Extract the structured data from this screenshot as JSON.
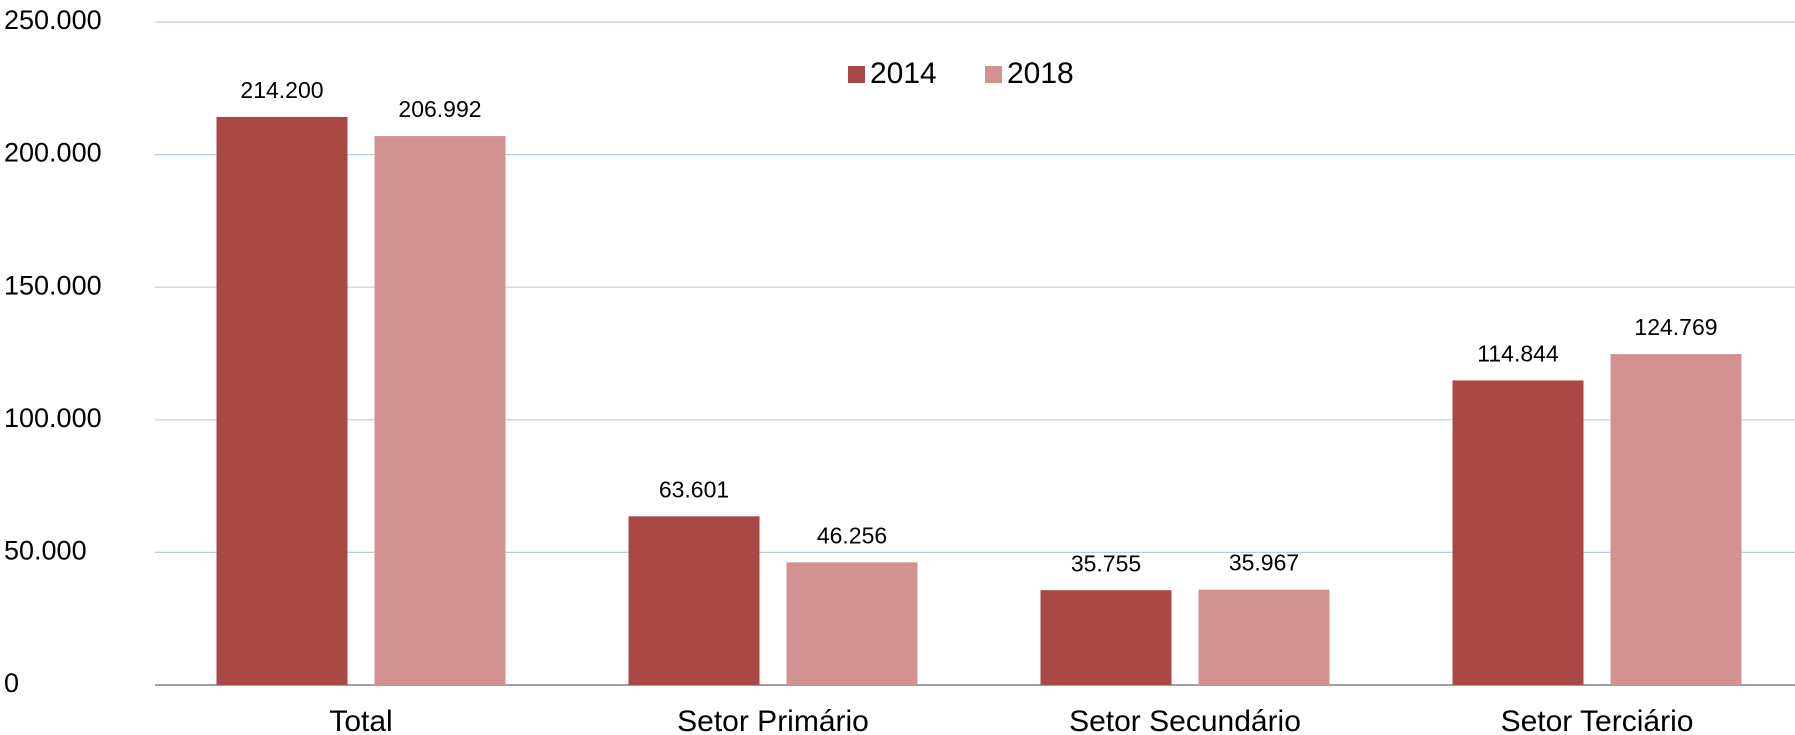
{
  "chart_data": {
    "type": "bar",
    "categories": [
      "Total",
      "Setor Primário",
      "Setor Secundário",
      "Setor Terciário"
    ],
    "series": [
      {
        "name": "2014",
        "color": "#a94745",
        "values": [
          214200,
          63601,
          35755,
          114844
        ],
        "value_labels": [
          "214.200",
          "63.601",
          "35.755",
          "114.844"
        ]
      },
      {
        "name": "2018",
        "color": "#d29291",
        "values": [
          206992,
          46256,
          35967,
          124769
        ],
        "value_labels": [
          "206.992",
          "46.256",
          "35.967",
          "124.769"
        ]
      }
    ],
    "ylim": [
      0,
      250000
    ],
    "yticks": [
      0,
      {
        "value": 50000,
        "label": "50.000"
      },
      {
        "value": 100000,
        "label": "100.000"
      },
      {
        "value": 150000,
        "label": "150.000"
      },
      {
        "value": 200000,
        "label": "200.000"
      },
      {
        "value": 250000,
        "label": "250.000"
      }
    ],
    "grid": true,
    "legend": "top"
  }
}
